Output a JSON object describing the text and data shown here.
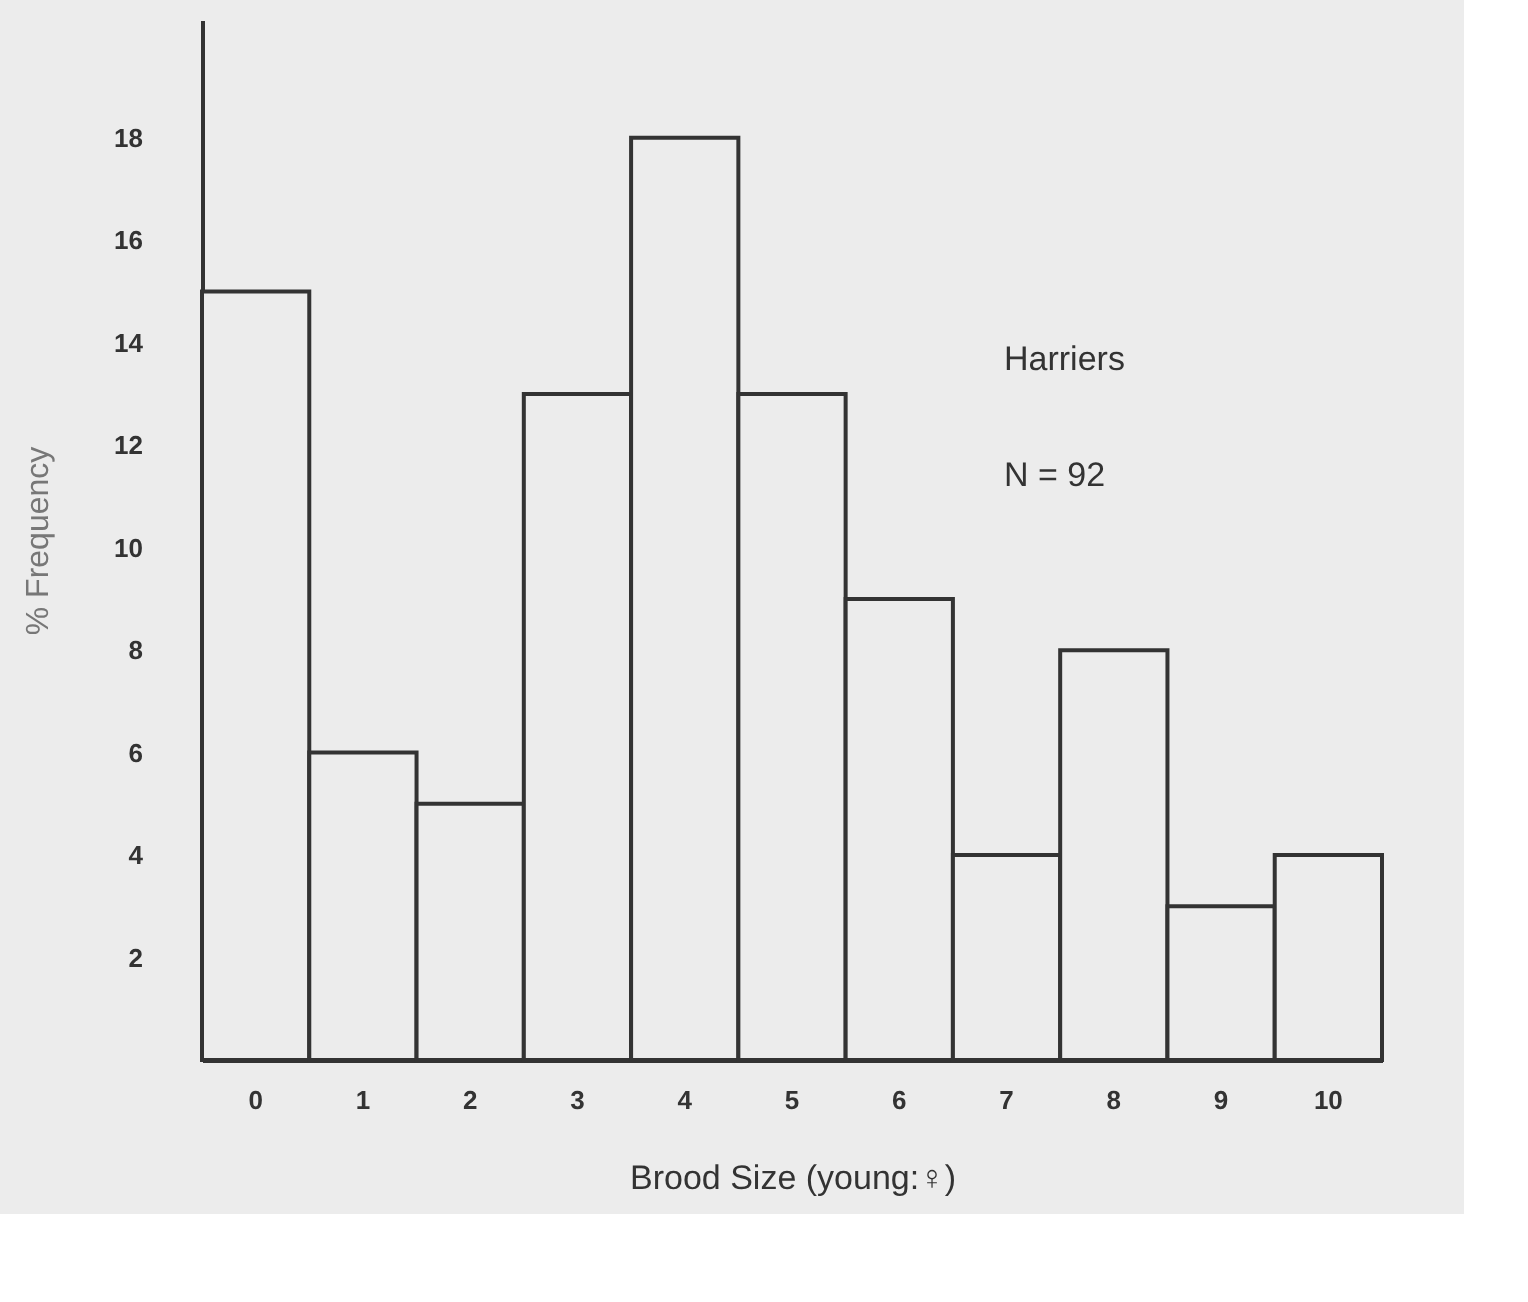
{
  "chart_data": {
    "type": "bar",
    "categories": [
      "0",
      "1",
      "2",
      "3",
      "4",
      "5",
      "6",
      "7",
      "8",
      "9",
      "10"
    ],
    "values": [
      15,
      6,
      5,
      13,
      18,
      13,
      9,
      4,
      8,
      3,
      4
    ],
    "color": "#ececec",
    "xlabel": "Brood Size (young:♀)",
    "ylabel": "% Frequency",
    "ylim": [
      0,
      20.3
    ],
    "yticks": [
      2,
      4,
      6,
      8,
      10,
      12,
      14,
      16,
      18
    ],
    "grid": false,
    "annotations": [
      "Harriers",
      "N = 92"
    ]
  }
}
